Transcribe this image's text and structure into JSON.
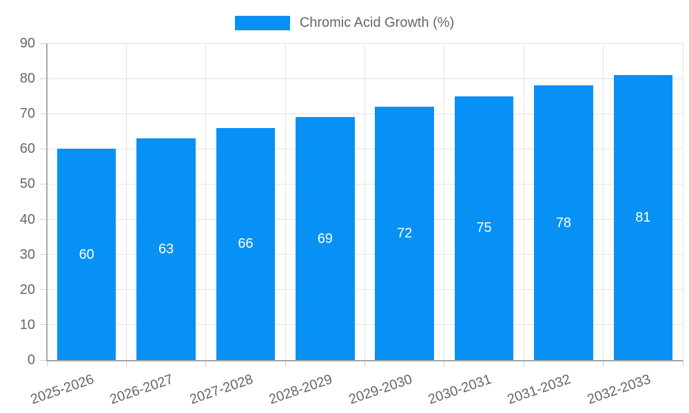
{
  "chart_data": {
    "type": "bar",
    "title": "",
    "xlabel": "",
    "ylabel": "",
    "categories": [
      "2025-2026",
      "2026-2027",
      "2027-2028",
      "2028-2029",
      "2029-2030",
      "2030-2031",
      "2031-2032",
      "2032-2033"
    ],
    "series": [
      {
        "name": "Chromic Acid Growth (%)",
        "values": [
          60,
          63,
          66,
          69,
          72,
          75,
          78,
          81
        ],
        "color": "#0891f5"
      }
    ],
    "value_labels_shown": true,
    "value_label_position": "inside-center",
    "ylim": [
      0,
      90
    ],
    "yticks": [
      0,
      10,
      20,
      30,
      40,
      50,
      60,
      70,
      80,
      90
    ],
    "grid": true,
    "legend_position": "top-center",
    "x_label_rotation_deg": -19,
    "colors": {
      "bar": "#0891f5",
      "grid": "#e3e3e3",
      "tick": "#cfcfcf",
      "axis": "#a6a6a6",
      "text": "#666666",
      "value_label": "#ffffff",
      "background": "#ffffff"
    }
  }
}
